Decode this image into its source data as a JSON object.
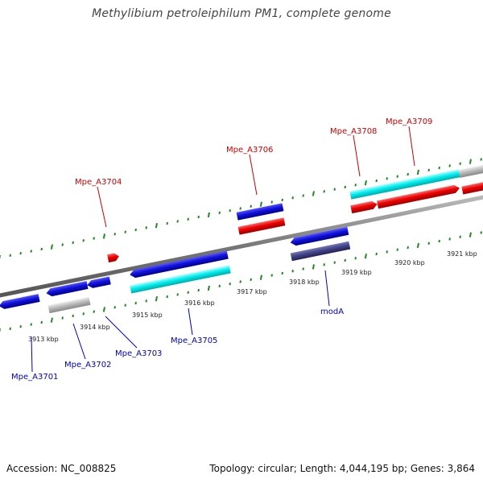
{
  "title": "Methylibium petroleiphilum PM1, complete genome",
  "footer": {
    "accession": "Accession: NC_008825",
    "summary": "Topology: circular; Length: 4,044,195 bp; Genes: 3,864"
  },
  "colors": {
    "forward_strand": "#ee0000",
    "reverse_strand": "#1111dd",
    "rna_cds": "#00eeee",
    "pseudogene": "#bbbbbb",
    "mod_gene": "#444488",
    "label_forward": "#cc0000",
    "label_reverse": "#0000bb",
    "tick": "#228822"
  },
  "ruler_labels": [
    {
      "kbp": 3913,
      "text": "3913 kbp"
    },
    {
      "kbp": 3914,
      "text": "3914 kbp"
    },
    {
      "kbp": 3915,
      "text": "3915 kbp"
    },
    {
      "kbp": 3916,
      "text": "3916 kbp"
    },
    {
      "kbp": 3917,
      "text": "3917 kbp"
    },
    {
      "kbp": 3918,
      "text": "3918 kbp"
    },
    {
      "kbp": 3919,
      "text": "3919 kbp"
    },
    {
      "kbp": 3920,
      "text": "3920 kbp"
    },
    {
      "kbp": 3921,
      "text": "3921 kbp"
    }
  ],
  "gene_labels": [
    {
      "text": "Mpe_A3701",
      "strand": "reverse"
    },
    {
      "text": "Mpe_A3702",
      "strand": "reverse"
    },
    {
      "text": "Mpe_A3703",
      "strand": "reverse"
    },
    {
      "text": "Mpe_A3704",
      "strand": "forward"
    },
    {
      "text": "Mpe_A3705",
      "strand": "reverse"
    },
    {
      "text": "Mpe_A3706",
      "strand": "forward"
    },
    {
      "text": "modA",
      "strand": "reverse"
    },
    {
      "text": "Mpe_A3708",
      "strand": "forward"
    },
    {
      "text": "Mpe_A3709",
      "strand": "forward"
    }
  ]
}
